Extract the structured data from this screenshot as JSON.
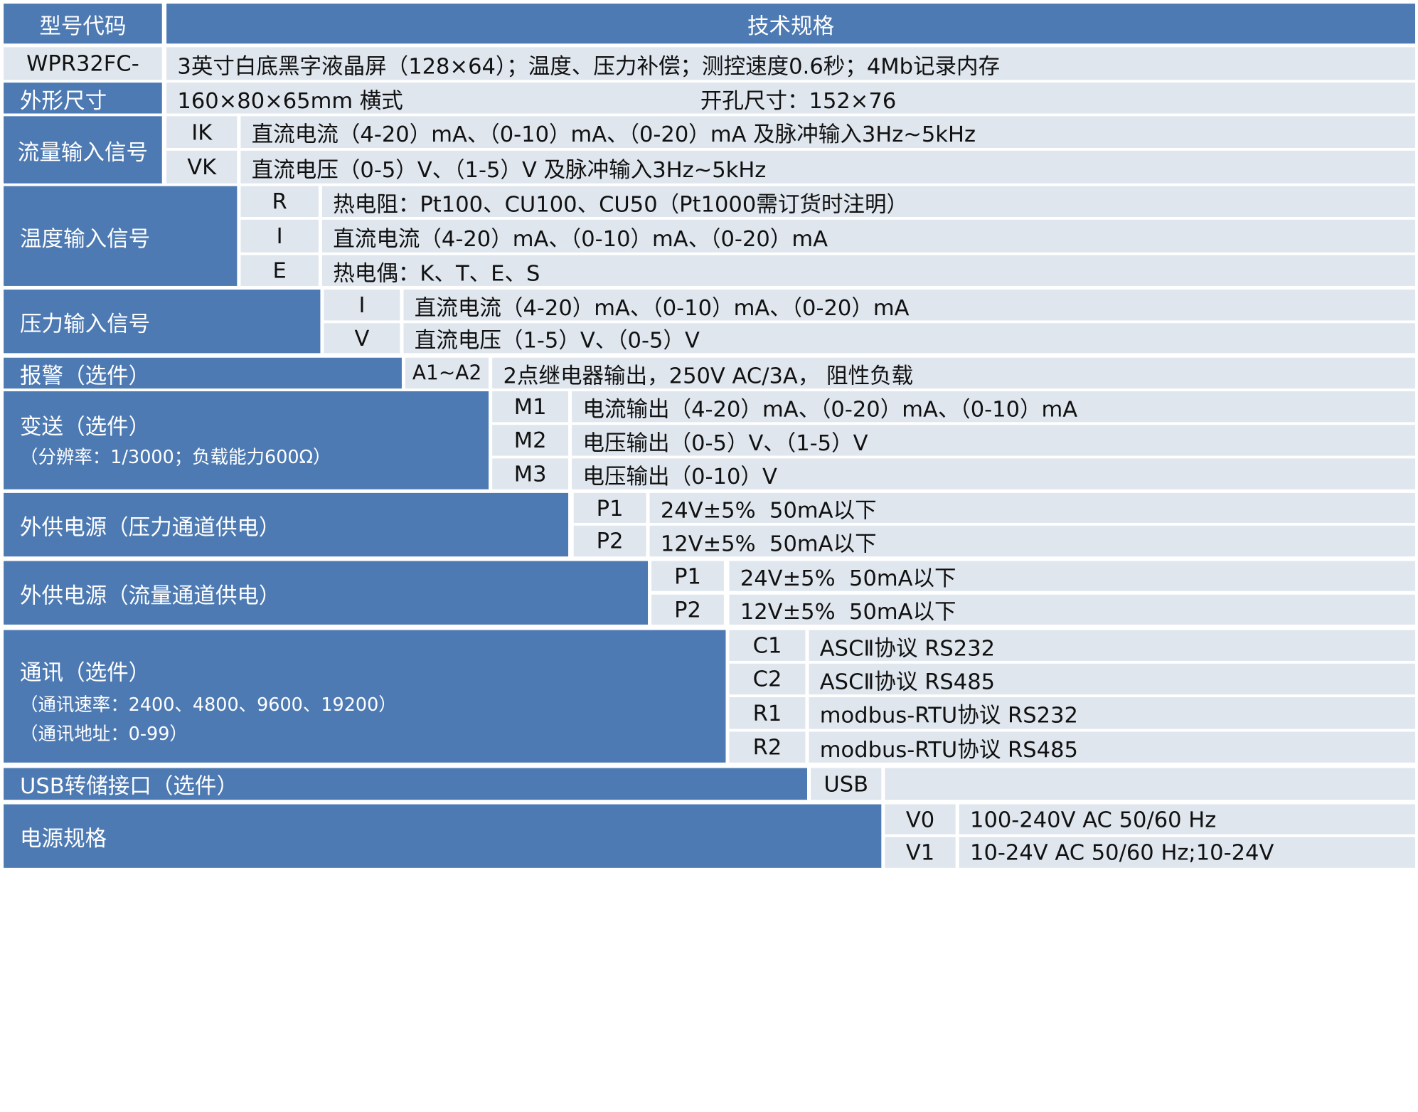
{
  "header": {
    "col1": "型号代码",
    "col2": "技术规格"
  },
  "model": {
    "code": "WPR32FC-",
    "desc": "3英寸白底黑字液晶屏（128×64）；温度、压力补偿；测控速度0.6秒；4Mb记录内存"
  },
  "dimensions": {
    "label": "外形尺寸",
    "size": "160×80×65mm 横式",
    "cutout": "开孔尺寸：152×76"
  },
  "flow_input": {
    "label": "流量输入信号",
    "rows": [
      {
        "code": "IK",
        "desc": "直流电流（4-20）mA、（0-10）mA、（0-20）mA 及脉冲输入3Hz~5kHz"
      },
      {
        "code": "VK",
        "desc": "直流电压（0-5）V、（1-5）V 及脉冲输入3Hz~5kHz"
      }
    ]
  },
  "temp_input": {
    "label": "温度输入信号",
    "rows": [
      {
        "code": "R",
        "desc": "热电阻：Pt100、CU100、CU50（Pt1000需订货时注明）"
      },
      {
        "code": "I",
        "desc": "直流电流（4-20）mA、（0-10）mA、（0-20）mA"
      },
      {
        "code": "E",
        "desc": "热电偶：K、T、E、S"
      }
    ]
  },
  "pressure_input": {
    "label": "压力输入信号",
    "rows": [
      {
        "code": "I",
        "desc": "直流电流（4-20）mA、（0-10）mA、（0-20）mA"
      },
      {
        "code": "V",
        "desc": "直流电压（1-5）V、（0-5）V"
      }
    ]
  },
  "alarm": {
    "label": "报警（选件）",
    "code": "A1~A2",
    "desc": "2点继电器输出，250V AC/3A， 阻性负载"
  },
  "transmit": {
    "label": "变送（选件）",
    "note": "（分辨率：1/3000；负载能力600Ω）",
    "rows": [
      {
        "code": "M1",
        "desc": "电流输出（4-20）mA、（0-20）mA、（0-10）mA"
      },
      {
        "code": "M2",
        "desc": "电压输出（0-5）V、（1-5）V"
      },
      {
        "code": "M3",
        "desc": "电压输出（0-10）V"
      }
    ]
  },
  "power_pressure": {
    "label": "外供电源（压力通道供电）",
    "rows": [
      {
        "code": "P1",
        "desc": "24V±5%  50mA以下"
      },
      {
        "code": "P2",
        "desc": "12V±5%  50mA以下"
      }
    ]
  },
  "power_flow": {
    "label": "外供电源（流量通道供电）",
    "rows": [
      {
        "code": "P1",
        "desc": "24V±5%  50mA以下"
      },
      {
        "code": "P2",
        "desc": "12V±5%  50mA以下"
      }
    ]
  },
  "comm": {
    "label": "通讯（选件）",
    "note1": "（通讯速率：2400、4800、9600、19200）",
    "note2": "（通讯地址：0-99）",
    "rows": [
      {
        "code": "C1",
        "desc": "ASCⅡ协议 RS232"
      },
      {
        "code": "C2",
        "desc": "ASCⅡ协议 RS485"
      },
      {
        "code": "R1",
        "desc": "modbus-RTU协议 RS232"
      },
      {
        "code": "R2",
        "desc": "modbus-RTU协议 RS485"
      }
    ]
  },
  "usb": {
    "label": "USB转储接口（选件）",
    "code": "USB"
  },
  "power_supply": {
    "label": "电源规格",
    "rows": [
      {
        "code": "V0",
        "desc": "100-240V AC 50/60 Hz"
      },
      {
        "code": "V1",
        "desc": "10-24V AC 50/60 Hz;10-24V"
      }
    ]
  }
}
